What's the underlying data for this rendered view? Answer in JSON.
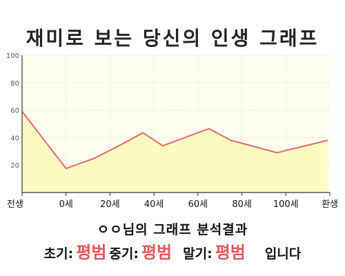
{
  "title": "재미로 보는 당신의 인생 그래프",
  "chart_data": {
    "type": "area",
    "x_labels": [
      "전생",
      "0세",
      "20세",
      "40세",
      "60세",
      "80세",
      "100세",
      "환생"
    ],
    "y_ticks": [
      100,
      80,
      60,
      40,
      20
    ],
    "ylim": [
      0,
      100
    ],
    "points": [
      {
        "x": 0,
        "y": 59
      },
      {
        "x": 1,
        "y": 17.5
      },
      {
        "x": 1.65,
        "y": 25
      },
      {
        "x": 2.2,
        "y": 34
      },
      {
        "x": 2.75,
        "y": 43.5
      },
      {
        "x": 3.2,
        "y": 34
      },
      {
        "x": 3.7,
        "y": 40
      },
      {
        "x": 4.25,
        "y": 46.5
      },
      {
        "x": 4.75,
        "y": 38
      },
      {
        "x": 5.8,
        "y": 29
      },
      {
        "x": 6.95,
        "y": 38
      }
    ],
    "colors": {
      "line": "#e2676b",
      "fill": "#fdfcc0",
      "plot_bg": "#fffff0"
    },
    "grid": true
  },
  "summary": "ㅇㅇ님의 그래프 분석결과",
  "results": {
    "early_label": "초기:",
    "early_value": "평범",
    "mid_label": "중기:",
    "mid_value": "평범",
    "late_label": "말기:",
    "late_value": "평범",
    "ending": "입니다"
  }
}
